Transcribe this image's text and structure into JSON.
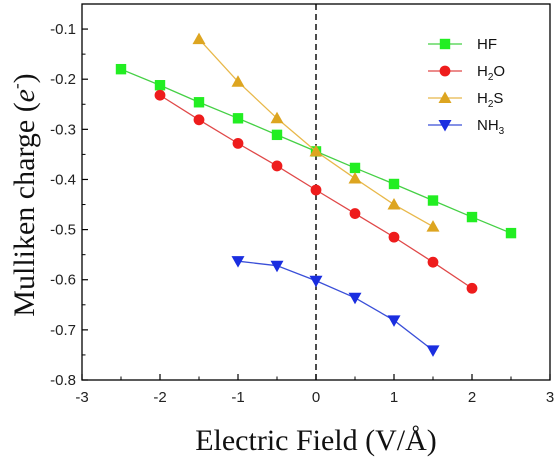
{
  "chart_data": {
    "type": "line",
    "xlabel": "Electric Field (V/Å)",
    "ylabel_main": "Mulliken charge (",
    "ylabel_var": "e",
    "ylabel_sup": "-",
    "ylabel_end": ")",
    "xlim": [
      -3,
      3
    ],
    "ylim": [
      -0.8,
      -0.05
    ],
    "x_ticks": [
      -3,
      -2,
      -1,
      0,
      1,
      2,
      3
    ],
    "x_tick_labels": [
      "-3",
      "-2",
      "-1",
      "0",
      "1",
      "2",
      "3"
    ],
    "y_ticks": [
      -0.1,
      -0.2,
      -0.3,
      -0.4,
      -0.5,
      -0.6,
      -0.7,
      -0.8
    ],
    "y_tick_labels": [
      "-0.1",
      "-0.2",
      "-0.3",
      "-0.4",
      "-0.5",
      "-0.6",
      "-0.7",
      "-0.8"
    ],
    "reference_line": {
      "x": 0,
      "style": "dashed"
    },
    "legend_position": "top-right",
    "grid": false,
    "series": [
      {
        "name": "HF",
        "name_base": "HF",
        "name_sub": "",
        "color": "#45d045",
        "marker_color": "#22ee22",
        "marker": "square",
        "x": [
          -2.5,
          -2,
          -1.5,
          -1,
          -0.5,
          0,
          0.5,
          1,
          1.5,
          2,
          2.5
        ],
        "y": [
          -0.18,
          -0.212,
          -0.246,
          -0.278,
          -0.311,
          -0.344,
          -0.377,
          -0.409,
          -0.442,
          -0.475,
          -0.507
        ]
      },
      {
        "name": "H2O",
        "name_base": "H",
        "name_sub": "2",
        "name_tail": "O",
        "color": "#e04848",
        "marker_color": "#ee1c1c",
        "marker": "circle",
        "x": [
          -2,
          -1.5,
          -1,
          -0.5,
          0,
          0.5,
          1,
          1.5,
          2
        ],
        "y": [
          -0.232,
          -0.281,
          -0.328,
          -0.373,
          -0.421,
          -0.468,
          -0.515,
          -0.565,
          -0.617
        ]
      },
      {
        "name": "H2S",
        "name_base": "H",
        "name_sub": "2",
        "name_tail": "S",
        "color": "#e8b84a",
        "marker_color": "#dda520",
        "marker": "triangle-up",
        "x": [
          -1.5,
          -1,
          -0.5,
          0,
          0.5,
          1,
          1.5
        ],
        "y": [
          -0.12,
          -0.205,
          -0.278,
          -0.344,
          -0.398,
          -0.45,
          -0.494
        ]
      },
      {
        "name": "NH3",
        "name_base": "NH",
        "name_sub": "3",
        "name_tail": "",
        "color": "#3a4fd8",
        "marker_color": "#1a2ee0",
        "marker": "triangle-down",
        "x": [
          -1,
          -0.5,
          0,
          0.5,
          1,
          1.5
        ],
        "y": [
          -0.563,
          -0.572,
          -0.602,
          -0.636,
          -0.681,
          -0.741
        ]
      }
    ]
  }
}
